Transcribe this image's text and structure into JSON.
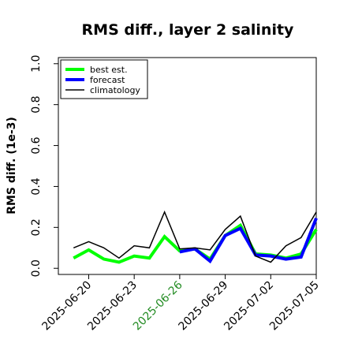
{
  "chart_data": {
    "type": "line",
    "title": "RMS diff., layer 2 salinity",
    "xlabel": "",
    "ylabel": "RMS diff. (1e-3)",
    "ylim": [
      -0.03,
      1.03
    ],
    "yticks": [
      0.0,
      0.2,
      0.4,
      0.6,
      0.8,
      1.0
    ],
    "ytick_labels": [
      "0.0",
      "0.2",
      "0.4",
      "0.6",
      "0.8",
      "1.0"
    ],
    "xlim": [
      -1,
      16
    ],
    "xtick_positions": [
      1,
      4,
      7,
      10,
      13,
      16
    ],
    "xtick_labels": [
      "2025-06-20",
      "2025-06-23",
      "2025-06-26",
      "2025-06-29",
      "2025-07-02",
      "2025-07-05"
    ],
    "xtick_colors": [
      "#000000",
      "#000000",
      "#228B22",
      "#000000",
      "#000000",
      "#000000"
    ],
    "x": [
      "2025-06-19",
      "2025-06-20",
      "2025-06-21",
      "2025-06-22",
      "2025-06-23",
      "2025-06-24",
      "2025-06-25",
      "2025-06-26",
      "2025-06-27",
      "2025-06-28",
      "2025-06-29",
      "2025-06-30",
      "2025-07-01",
      "2025-07-02",
      "2025-07-03",
      "2025-07-04",
      "2025-07-05"
    ],
    "legend_position": "top-left",
    "grid": false,
    "series": [
      {
        "name": "best est.",
        "color": "#00ff00",
        "width": 4,
        "values": [
          0.05,
          0.09,
          0.045,
          0.03,
          0.06,
          0.05,
          0.155,
          0.085,
          0.095,
          0.045,
          0.16,
          0.21,
          0.07,
          0.065,
          0.05,
          0.07,
          0.19
        ]
      },
      {
        "name": "forecast",
        "color": "#0000ff",
        "width": 4,
        "values": [
          null,
          null,
          null,
          null,
          null,
          null,
          null,
          0.08,
          0.095,
          0.035,
          0.16,
          0.195,
          0.065,
          0.06,
          0.045,
          0.055,
          0.245
        ]
      },
      {
        "name": "climatology",
        "color": "#000000",
        "width": 1.5,
        "values": [
          0.1,
          0.13,
          0.1,
          0.05,
          0.11,
          0.1,
          0.275,
          0.095,
          0.1,
          0.09,
          0.19,
          0.255,
          0.06,
          0.03,
          0.11,
          0.15,
          0.275
        ]
      }
    ]
  }
}
